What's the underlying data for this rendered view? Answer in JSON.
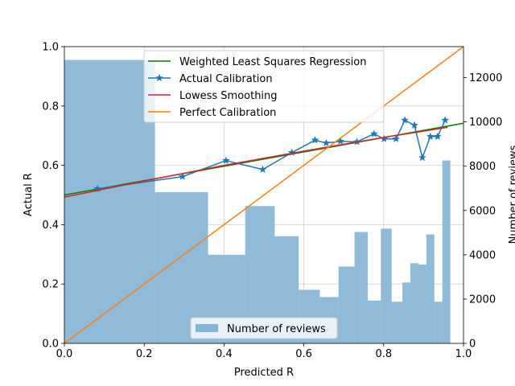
{
  "chart_data": {
    "type": "line",
    "xlabel": "Predicted R",
    "ylabel": "Actual R",
    "y2label": "Number of reviews",
    "xlim": [
      0,
      1
    ],
    "ylim": [
      0,
      1
    ],
    "y2lim": [
      0,
      13400
    ],
    "grid": true,
    "x_ticks": [
      "0.0",
      "0.2",
      "0.4",
      "0.6",
      "0.8",
      "1.0"
    ],
    "y_ticks": [
      "0.0",
      "0.2",
      "0.4",
      "0.6",
      "0.8",
      "1.0"
    ],
    "y2_ticks": [
      "0",
      "2000",
      "4000",
      "6000",
      "8000",
      "10000",
      "12000"
    ],
    "legend_top": {
      "placement": "upper-center",
      "entries": [
        "Weighted Least Squares Regression",
        "Actual Calibration",
        "Lowess Smoothing",
        "Perfect Calibration"
      ]
    },
    "legend_bottom": {
      "placement": "lower-center",
      "entries": [
        "Number of reviews"
      ]
    },
    "series": [
      {
        "name": "Weighted Least Squares Regression",
        "kind": "line",
        "color": "#008000",
        "x": [
          0.0,
          1.0
        ],
        "y": [
          0.5,
          0.742
        ]
      },
      {
        "name": "Actual Calibration",
        "kind": "line-markers",
        "color": "#1f77b4",
        "x": [
          0.083,
          0.296,
          0.405,
          0.497,
          0.57,
          0.628,
          0.656,
          0.692,
          0.733,
          0.776,
          0.801,
          0.831,
          0.853,
          0.877,
          0.897,
          0.917,
          0.935,
          0.954
        ],
        "y": [
          0.521,
          0.562,
          0.616,
          0.586,
          0.643,
          0.685,
          0.675,
          0.681,
          0.679,
          0.706,
          0.689,
          0.689,
          0.752,
          0.735,
          0.626,
          0.697,
          0.697,
          0.752
        ]
      },
      {
        "name": "Lowess Smoothing",
        "kind": "line",
        "color": "#d62728",
        "x": [
          0.0,
          0.2,
          0.4,
          0.6,
          0.8,
          0.96
        ],
        "y": [
          0.493,
          0.547,
          0.6,
          0.648,
          0.694,
          0.728
        ]
      },
      {
        "name": "Perfect Calibration",
        "kind": "line",
        "color": "#ff7f0e",
        "x": [
          0.0,
          1.0
        ],
        "y": [
          0.0,
          1.0
        ]
      },
      {
        "name": "Number of reviews",
        "kind": "histogram",
        "axis": "y2",
        "color": "#1f77b4",
        "opacity": 0.5,
        "bins": [
          [
            0.0,
            0.227,
            12800
          ],
          [
            0.227,
            0.36,
            6830
          ],
          [
            0.36,
            0.453,
            4000
          ],
          [
            0.453,
            0.527,
            6200
          ],
          [
            0.527,
            0.587,
            4840
          ],
          [
            0.587,
            0.64,
            2420
          ],
          [
            0.64,
            0.687,
            2090
          ],
          [
            0.687,
            0.727,
            3470
          ],
          [
            0.727,
            0.76,
            5030
          ],
          [
            0.76,
            0.793,
            1930
          ],
          [
            0.793,
            0.82,
            5180
          ],
          [
            0.82,
            0.847,
            1880
          ],
          [
            0.847,
            0.867,
            2750
          ],
          [
            0.867,
            0.887,
            3620
          ],
          [
            0.887,
            0.907,
            3560
          ],
          [
            0.907,
            0.927,
            4920
          ],
          [
            0.927,
            0.947,
            1880
          ],
          [
            0.947,
            0.967,
            8260
          ]
        ]
      }
    ]
  }
}
